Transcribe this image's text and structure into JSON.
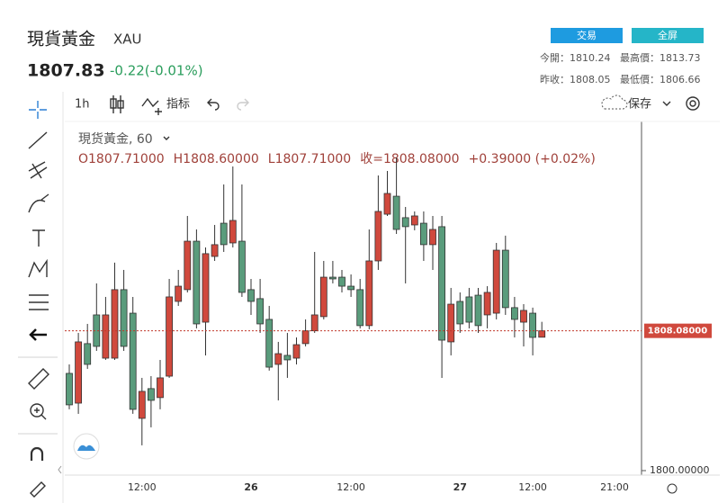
{
  "header": {
    "title": "現貨黃金",
    "symbol": "XAU",
    "price": 1807.83,
    "change": "-0.22(-0.01%)",
    "buttons": [
      "交易",
      "全屏"
    ],
    "stats": [
      {
        "label": "今開：",
        "value": 1810.24
      },
      {
        "label": "最高價：",
        "value": 1813.73
      },
      {
        "label": "昨收：",
        "value": 1808.05
      },
      {
        "label": "最低價：",
        "value": 1806.66
      }
    ]
  },
  "toolbar": {
    "interval": "1h",
    "indicators": "指标",
    "save": "保存"
  },
  "chart_data": {
    "type": "candlestick",
    "legend_title": "現货黃金, 60",
    "ohlc_header": [
      "O1807.71000",
      "H1808.60000",
      "L1807.71000",
      "收=1808.08000",
      "+0.39000 (+0.02%)"
    ],
    "categories": [
      null,
      null,
      null,
      null,
      null,
      null,
      null,
      null,
      "12:00",
      null,
      null,
      null,
      null,
      null,
      null,
      null,
      null,
      null,
      null,
      null,
      "26",
      null,
      null,
      null,
      null,
      null,
      null,
      null,
      null,
      null,
      null,
      "12:00",
      null,
      null,
      null,
      null,
      null,
      null,
      null,
      null,
      null,
      null,
      null,
      "27",
      null,
      null,
      null,
      null,
      null,
      null,
      null,
      "12:00",
      null,
      null,
      null,
      null,
      null,
      null,
      null,
      null,
      "21:00"
    ],
    "open": [
      1805.62,
      1803.9,
      1807.34,
      1809.0,
      1806.5,
      1806.5,
      1810.46,
      1809.1,
      1803.02,
      1804.74,
      1804.22,
      1805.46,
      1809.78,
      1810.46,
      1813.26,
      1808.58,
      1812.38,
      1814.3,
      1813.16,
      1813.26,
      1810.46,
      1809.94,
      1808.74,
      1806.14,
      1806.66,
      1806.5,
      1807.34,
      1808.08,
      1808.9,
      1811.18,
      1811.18,
      1810.66,
      1810.46,
      1808.38,
      1812.12,
      1814.82,
      1815.86,
      1814.62,
      1814.2,
      1814.3,
      1813.06,
      1814.1,
      1807.44,
      1809.78,
      1810.04,
      1810.14,
      1809.0,
      1809.1,
      1812.74,
      1809.42,
      1808.58,
      1809.1,
      1807.71,
      null,
      null,
      null,
      null,
      null,
      null,
      null,
      null
    ],
    "high": [
      1806.14,
      1807.96,
      1808.48,
      1810.82,
      1810.04,
      1812.02,
      1811.6,
      1810.04,
      1805.36,
      1805.46,
      1806.4,
      1811.08,
      1811.6,
      1814.72,
      1813.94,
      1812.9,
      1814.2,
      1816.54,
      1817.58,
      1816.54,
      1811.08,
      1811.08,
      1809.52,
      1807.44,
      1807.96,
      1807.7,
      1808.74,
      1812.64,
      1812.12,
      1812.12,
      1811.6,
      1811.34,
      1811.08,
      1813.94,
      1817.06,
      1817.32,
      1818.1,
      1815.24,
      1814.98,
      1814.98,
      1814.72,
      1814.72,
      1810.56,
      1810.3,
      1810.56,
      1810.56,
      1810.66,
      1813.16,
      1813.58,
      1810.04,
      1809.62,
      1809.42,
      1808.6,
      null,
      null,
      null,
      null,
      null,
      null,
      null,
      null
    ],
    "low": [
      1803.54,
      1803.28,
      1805.88,
      1806.92,
      1806.4,
      1806.4,
      1806.92,
      1803.28,
      1801.46,
      1802.5,
      1803.54,
      1805.36,
      1809.52,
      1810.3,
      1808.22,
      1806.66,
      1812.12,
      1812.64,
      1812.9,
      1810.04,
      1809.0,
      1807.96,
      1805.78,
      1804.06,
      1805.36,
      1806.14,
      1807.18,
      1807.96,
      1808.74,
      1810.82,
      1810.3,
      1810.04,
      1808.22,
      1808.17,
      1811.6,
      1814.72,
      1813.68,
      1810.82,
      1813.89,
      1812.12,
      1811.6,
      1805.36,
      1806.66,
      1807.96,
      1808.22,
      1807.96,
      1808.22,
      1808.74,
      1809.0,
      1807.7,
      1807.18,
      1806.66,
      1807.71,
      null,
      null,
      null,
      null,
      null,
      null,
      null,
      null
    ],
    "close": [
      1803.8,
      1807.44,
      1806.14,
      1807.18,
      1809.0,
      1810.46,
      1807.18,
      1803.54,
      1804.58,
      1804.06,
      1805.36,
      1810.04,
      1810.66,
      1813.26,
      1808.48,
      1812.54,
      1813.06,
      1813.06,
      1814.46,
      1810.3,
      1809.78,
      1808.48,
      1805.98,
      1806.76,
      1806.4,
      1807.28,
      1808.08,
      1809.0,
      1811.18,
      1811.08,
      1810.66,
      1810.46,
      1808.38,
      1812.12,
      1814.98,
      1816.02,
      1813.94,
      1814.1,
      1814.72,
      1813.06,
      1813.94,
      1807.54,
      1809.62,
      1808.48,
      1808.58,
      1808.38,
      1810.3,
      1812.74,
      1809.42,
      1808.74,
      1809.26,
      1807.7,
      1808.08,
      null,
      null,
      null,
      null,
      null,
      null,
      null,
      null
    ],
    "up_color": "#d0493d",
    "down_color": "#5a9c7c",
    "ylim": [
      1799.74,
      1820.18
    ],
    "yticks": [
      {
        "value": 1800,
        "label": "1800.00000"
      }
    ],
    "price_line": {
      "value": 1808.08,
      "label": "1808.08000"
    },
    "grid": false
  }
}
